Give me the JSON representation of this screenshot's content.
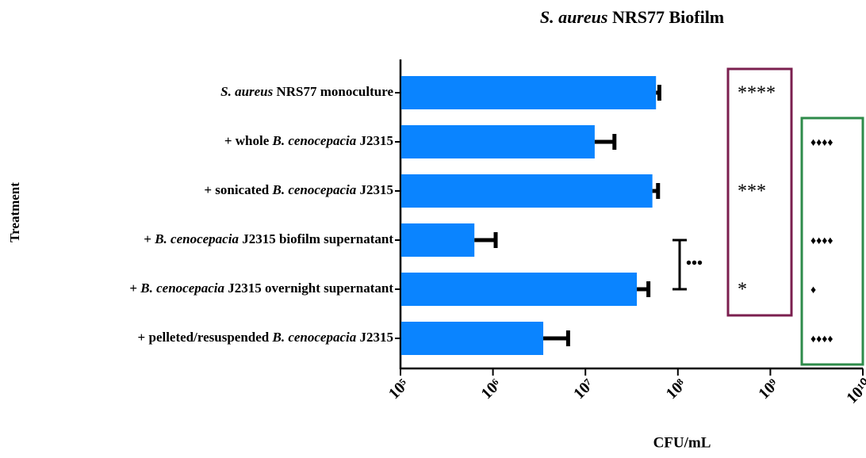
{
  "chart_data": {
    "type": "bar",
    "orientation": "horizontal",
    "title": [
      {
        "text": "S. aureus",
        "italic": true
      },
      {
        "text": " NRS77 Biofilm"
      }
    ],
    "x_label": "CFU/mL",
    "y_label": "Treatment",
    "categories": [
      [
        {
          "text": "S. aureus",
          "italic": true
        },
        {
          "text": " NRS77 monoculture"
        }
      ],
      [
        {
          "text": "+ whole "
        },
        {
          "text": "B. cenocepacia",
          "italic": true
        },
        {
          "text": " J2315"
        }
      ],
      [
        {
          "text": "+ sonicated "
        },
        {
          "text": "B. cenocepacia",
          "italic": true
        },
        {
          "text": " J2315"
        }
      ],
      [
        {
          "text": "+ "
        },
        {
          "text": "B. cenocepacia",
          "italic": true
        },
        {
          "text": " J2315 biofilm supernatant"
        }
      ],
      [
        {
          "text": "+ "
        },
        {
          "text": "B. cenocepacia",
          "italic": true
        },
        {
          "text": " J2315 overnight supernatant"
        }
      ],
      [
        {
          "text": "+ pelleted/resuspended "
        },
        {
          "text": "B. cenocepacia",
          "italic": true
        },
        {
          "text": " J2315"
        }
      ]
    ],
    "values": [
      58000000,
      12600000,
      53000000,
      630000,
      36000000,
      3500000
    ],
    "errors": [
      5000000,
      8000000,
      8000000,
      440000,
      12000000,
      3000000
    ],
    "color": "#0a84ff",
    "xscale": "log",
    "xlim": [
      100000,
      10000000000
    ],
    "xticks": [
      {
        "value": 100000,
        "label": "10⁵"
      },
      {
        "value": 1000000,
        "label": "10⁶"
      },
      {
        "value": 10000000,
        "label": "10⁷"
      },
      {
        "value": 100000000,
        "label": "10⁸"
      },
      {
        "value": 1000000000,
        "label": "10⁹"
      },
      {
        "value": 10000000000,
        "label": "10¹⁰"
      }
    ],
    "significance_box_1": {
      "color": "#7b1f4f",
      "labels": [
        "****",
        null,
        "***",
        null,
        "*",
        null
      ]
    },
    "significance_box_2": {
      "color": "#2e8b4a",
      "labels": [
        null,
        "♦♦♦♦",
        null,
        "♦♦♦♦",
        "♦",
        "♦♦♦♦"
      ]
    },
    "bracket": {
      "rows": [
        3,
        4
      ],
      "label": "•••"
    }
  }
}
